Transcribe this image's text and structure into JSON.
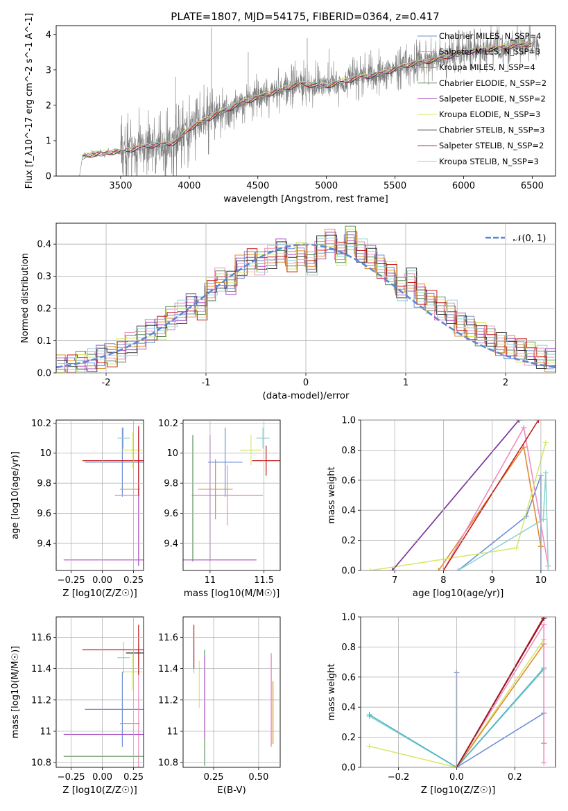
{
  "figure": {
    "title": "PLATE=1807, MJD=54175, FIBERID=0364, z=0.417"
  },
  "chart_data": [
    {
      "id": "spectrum",
      "type": "line",
      "title": "PLATE=1807, MJD=54175, FIBERID=0364, z=0.417",
      "xlabel": "wavelength [Angstrom, rest frame]",
      "ylabel": "Flux [f_λ10^-17 erg cm^-2 s^-1 A^-1]",
      "xlim": [
        3030,
        6670
      ],
      "ylim": [
        0,
        4.25
      ],
      "xticks": [
        3500,
        4000,
        4500,
        5000,
        5500,
        6000,
        6500
      ],
      "yticks": [
        0,
        1,
        2,
        3,
        4
      ],
      "legend_position": "top-right",
      "observed": {
        "x_start": 3200,
        "x_end": 6550,
        "color": "#808080",
        "description_points": [
          [
            3200,
            0
          ],
          [
            3220,
            0.55
          ],
          [
            3300,
            0.62
          ],
          [
            3500,
            0.7
          ],
          [
            3700,
            0.85
          ],
          [
            3900,
            0.95
          ],
          [
            4000,
            1.35
          ],
          [
            4200,
            1.75
          ],
          [
            4400,
            2.1
          ],
          [
            4600,
            2.35
          ],
          [
            4800,
            2.6
          ],
          [
            5000,
            2.55
          ],
          [
            5200,
            2.75
          ],
          [
            5400,
            2.9
          ],
          [
            5600,
            3.15
          ],
          [
            5800,
            3.3
          ],
          [
            6000,
            3.5
          ],
          [
            6200,
            3.6
          ],
          [
            6400,
            3.7
          ],
          [
            6550,
            3.75
          ]
        ]
      },
      "series": [
        {
          "name": "Chabrier MILES, N_SSP=4",
          "color": "#6b8fd6"
        },
        {
          "name": "Salpeter MILES, N_SSP=3",
          "color": "#f08bbf"
        },
        {
          "name": "Kroupa MILES, N_SSP=4",
          "color": "#e08a2a"
        },
        {
          "name": "Chabrier ELODIE, N_SSP=2",
          "color": "#5a8f5a"
        },
        {
          "name": "Salpeter ELODIE, N_SSP=2",
          "color": "#a64fc2"
        },
        {
          "name": "Kroupa ELODIE, N_SSP=3",
          "color": "#d8e86a"
        },
        {
          "name": "Chabrier STELIB, N_SSP=3",
          "color": "#333333"
        },
        {
          "name": "Salpeter STELIB, N_SSP=2",
          "color": "#c41a1a"
        },
        {
          "name": "Kroupa STELIB, N_SSP=3",
          "color": "#8fd4d4"
        }
      ]
    },
    {
      "id": "residuals",
      "type": "line",
      "xlabel": "(data-model)/error",
      "ylabel": "Normed distribution",
      "xlim": [
        -2.5,
        2.5
      ],
      "ylim": [
        0,
        0.465
      ],
      "xticks": [
        -2,
        -1,
        0,
        1,
        2
      ],
      "yticks": [
        0.0,
        0.1,
        0.2,
        0.3,
        0.4
      ],
      "grid": true,
      "legend": "𝒩(0, 1)",
      "legend_position": "top-right",
      "gaussian": {
        "mean": 0,
        "sigma": 1,
        "color": "#5b86d6"
      },
      "hist_bins": [
        -2.5,
        -2.4,
        -2.3,
        -2.2,
        -2.1,
        -2.0,
        -1.9,
        -1.8,
        -1.7,
        -1.6,
        -1.5,
        -1.4,
        -1.3,
        -1.2,
        -1.1,
        -1.0,
        -0.9,
        -0.8,
        -0.7,
        -0.6,
        -0.5,
        -0.4,
        -0.3,
        -0.2,
        -0.1,
        0.0,
        0.1,
        0.2,
        0.3,
        0.4,
        0.5,
        0.6,
        0.7,
        0.8,
        0.9,
        1.0,
        1.1,
        1.2,
        1.3,
        1.4,
        1.5,
        1.6,
        1.7,
        1.8,
        1.9,
        2.0,
        2.1,
        2.2,
        2.3,
        2.4
      ],
      "hist_values": [
        0.02,
        0.02,
        0.03,
        0.04,
        0.05,
        0.055,
        0.07,
        0.09,
        0.11,
        0.13,
        0.14,
        0.17,
        0.19,
        0.21,
        0.2,
        0.26,
        0.29,
        0.28,
        0.33,
        0.35,
        0.34,
        0.36,
        0.38,
        0.35,
        0.37,
        0.34,
        0.39,
        0.41,
        0.37,
        0.42,
        0.38,
        0.36,
        0.33,
        0.31,
        0.26,
        0.29,
        0.24,
        0.22,
        0.2,
        0.19,
        0.15,
        0.14,
        0.12,
        0.11,
        0.09,
        0.08,
        0.07,
        0.06,
        0.05,
        0.04
      ]
    },
    {
      "id": "age_vs_Z",
      "type": "scatter",
      "xlabel": "Z [log10(Z/Z☉)]",
      "ylabel": "age [log10(age/yr)]",
      "xlim": [
        -0.37,
        0.33
      ],
      "ylim": [
        9.22,
        10.22
      ],
      "xticks": [
        -0.25,
        0.0,
        0.25
      ],
      "xticklabels": [
        "−0.25",
        "0.00",
        "0.25"
      ],
      "yticks": [
        9.4,
        9.6,
        9.8,
        10.0,
        10.2
      ],
      "grid": true,
      "points": [
        {
          "x": 0.16,
          "y": 9.94,
          "xerr": 0.3,
          "yerr": 0.23,
          "color": "#6b8fd6"
        },
        {
          "x": 0.2,
          "y": 9.72,
          "xerr": 0.1,
          "yerr": 0.0,
          "color": "#f08bbf"
        },
        {
          "x": 0.22,
          "y": 9.76,
          "xerr": 0.08,
          "yerr": 0.0,
          "color": "#e08a2a"
        },
        {
          "x": 0.29,
          "y": 9.29,
          "xerr": 0.6,
          "yerr": 0.0,
          "color": "#a64fc2"
        },
        {
          "x": 0.29,
          "y": 9.7,
          "xerr": 0.0,
          "yerr": 0.45,
          "color": "#a64fc2"
        },
        {
          "x": 0.24,
          "y": 10.02,
          "xerr": 0.08,
          "yerr": 0.12,
          "color": "#d8e86a"
        },
        {
          "x": 0.17,
          "y": 10.1,
          "xerr": 0.05,
          "yerr": 0.07,
          "color": "#8fd4d4"
        },
        {
          "x": 0.29,
          "y": 9.95,
          "xerr": 0.45,
          "yerr": 0.23,
          "color": "#c41a1a"
        }
      ]
    },
    {
      "id": "age_vs_mass",
      "type": "scatter",
      "xlabel": "mass [log10(M/M☉)]",
      "xlim": [
        10.75,
        11.65
      ],
      "ylim": [
        9.22,
        10.22
      ],
      "xticks": [
        11.0,
        11.5
      ],
      "yticks": [
        9.4,
        9.6,
        9.8,
        10.0,
        10.2
      ],
      "grid": true,
      "points": [
        {
          "x": 11.14,
          "y": 9.94,
          "xerr": 0.16,
          "yerr": 0.23,
          "color": "#6b8fd6"
        },
        {
          "x": 11.16,
          "y": 9.72,
          "xerr": 0.33,
          "yerr": 0.2,
          "color": "#f08bbf"
        },
        {
          "x": 11.05,
          "y": 9.76,
          "xerr": 0.16,
          "yerr": 0.2,
          "color": "#e08a2a"
        },
        {
          "x": 10.84,
          "y": 9.7,
          "xerr": 0.0,
          "yerr": 0.42,
          "color": "#5a8f5a"
        },
        {
          "x": 10.98,
          "y": 9.29,
          "xerr": 0.45,
          "yerr": 0.0,
          "color": "#a64fc2"
        },
        {
          "x": 11.0,
          "y": 9.7,
          "xerr": 0.0,
          "yerr": 0.42,
          "color": "#a64fc2"
        },
        {
          "x": 11.38,
          "y": 10.02,
          "xerr": 0.1,
          "yerr": 0.1,
          "color": "#d8e86a"
        },
        {
          "x": 11.49,
          "y": 10.1,
          "xerr": 0.06,
          "yerr": 0.07,
          "color": "#8fd4d4"
        },
        {
          "x": 11.52,
          "y": 9.95,
          "xerr": 0.13,
          "yerr": 0.1,
          "color": "#c41a1a"
        }
      ]
    },
    {
      "id": "massweight_vs_age",
      "type": "line",
      "xlabel": "age [log10(age/yr)]",
      "ylabel": "mass weight",
      "xlim": [
        6.3,
        10.3
      ],
      "ylim": [
        0,
        1.0
      ],
      "xticks": [
        7,
        8,
        9,
        10
      ],
      "yticks": [
        0.0,
        0.2,
        0.4,
        0.6,
        0.8,
        1.0
      ],
      "grid": true,
      "series": [
        {
          "color": "#6b8fd6",
          "x": [
            8.3,
            9.7,
            10.0,
            10.0
          ],
          "y": [
            0.0,
            0.36,
            0.63,
            0.0
          ]
        },
        {
          "color": "#e08a2a",
          "x": [
            7.9,
            9.65,
            10.0
          ],
          "y": [
            0.0,
            0.82,
            0.16
          ]
        },
        {
          "color": "#f08bbf",
          "x": [
            8.0,
            9.65,
            10.15
          ],
          "y": [
            0.0,
            0.95,
            0.03
          ]
        },
        {
          "color": "#d8e86a",
          "x": [
            6.5,
            9.5,
            10.1
          ],
          "y": [
            0.0,
            0.15,
            0.85
          ]
        },
        {
          "color": "#8fd4d4",
          "x": [
            8.3,
            10.05,
            10.1,
            10.15
          ],
          "y": [
            0.0,
            0.34,
            0.65,
            0.0
          ]
        },
        {
          "color": "#a64fc2",
          "x": [
            6.95,
            9.55
          ],
          "y": [
            0.0,
            1.0
          ]
        },
        {
          "color": "#7a3a9a",
          "x": [
            6.95,
            9.55
          ],
          "y": [
            0.0,
            1.0
          ]
        },
        {
          "color": "#c41a1a",
          "x": [
            8.0,
            9.95
          ],
          "y": [
            0.0,
            1.0
          ]
        }
      ]
    },
    {
      "id": "mass_vs_Z",
      "type": "scatter",
      "xlabel": "Z [log10(Z/Z☉)]",
      "ylabel": "mass [log10(M/M☉)]",
      "xlim": [
        -0.37,
        0.33
      ],
      "ylim": [
        10.77,
        11.73
      ],
      "xticks": [
        -0.25,
        0.0,
        0.25
      ],
      "xticklabels": [
        "−0.25",
        "0.00",
        "0.25"
      ],
      "yticks": [
        10.8,
        11.0,
        11.2,
        11.4,
        11.6
      ],
      "grid": true,
      "points": [
        {
          "x": 0.16,
          "y": 11.14,
          "xerr": 0.3,
          "yerr": 0.24,
          "color": "#6b8fd6"
        },
        {
          "x": 0.29,
          "y": 11.1,
          "xerr": 0.0,
          "yerr": 0.45,
          "color": "#f08bbf"
        },
        {
          "x": 0.22,
          "y": 11.05,
          "xerr": 0.08,
          "yerr": 0.0,
          "color": "#e08a2a"
        },
        {
          "x": 0.29,
          "y": 10.84,
          "xerr": 0.6,
          "yerr": 0.0,
          "color": "#5a8f5a"
        },
        {
          "x": 0.29,
          "y": 10.98,
          "xerr": 0.6,
          "yerr": 0.0,
          "color": "#a64fc2"
        },
        {
          "x": 0.24,
          "y": 11.38,
          "xerr": 0.08,
          "yerr": 0.12,
          "color": "#d8e86a"
        },
        {
          "x": 0.17,
          "y": 11.47,
          "xerr": 0.05,
          "yerr": 0.1,
          "color": "#8fd4d4"
        },
        {
          "x": 0.29,
          "y": 11.52,
          "xerr": 0.45,
          "yerr": 0.16,
          "color": "#c41a1a"
        },
        {
          "x": 0.26,
          "y": 11.5,
          "xerr": 0.07,
          "yerr": 0.0,
          "color": "#333333"
        }
      ]
    },
    {
      "id": "mass_vs_EBV",
      "type": "scatter",
      "xlabel": "E(B-V)",
      "xlim": [
        0.08,
        0.62
      ],
      "ylim": [
        10.77,
        11.73
      ],
      "xticks": [
        0.25,
        0.5
      ],
      "xticklabels": [
        "0.25",
        "0.50"
      ],
      "yticks": [
        10.8,
        11.0,
        11.2,
        11.4,
        11.6
      ],
      "grid": true,
      "points": [
        {
          "x": 0.57,
          "y": 11.2,
          "xerr": 0.0,
          "yerr": 0.29,
          "color": "#6b8fd6"
        },
        {
          "x": 0.57,
          "y": 11.2,
          "xerr": 0.0,
          "yerr": 0.3,
          "color": "#f08bbf"
        },
        {
          "x": 0.58,
          "y": 11.12,
          "xerr": 0.0,
          "yerr": 0.2,
          "color": "#e08a2a"
        },
        {
          "x": 0.2,
          "y": 11.15,
          "xerr": 0.0,
          "yerr": 0.37,
          "color": "#5a8f5a"
        },
        {
          "x": 0.2,
          "y": 11.22,
          "xerr": 0.0,
          "yerr": 0.26,
          "color": "#a64fc2"
        },
        {
          "x": 0.17,
          "y": 11.3,
          "xerr": 0.0,
          "yerr": 0.15,
          "color": "#d8e86a"
        },
        {
          "x": 0.14,
          "y": 11.47,
          "xerr": 0.0,
          "yerr": 0.1,
          "color": "#8fd4d4"
        },
        {
          "x": 0.14,
          "y": 11.54,
          "xerr": 0.0,
          "yerr": 0.14,
          "color": "#c41a1a"
        }
      ]
    },
    {
      "id": "massweight_vs_Z",
      "type": "line",
      "xlabel": "Z [log10(Z/Z☉)]",
      "ylabel": "mass weight",
      "xlim": [
        -0.33,
        0.34
      ],
      "ylim": [
        0,
        1.0
      ],
      "xticks": [
        -0.2,
        0.0,
        0.2
      ],
      "xticklabels": [
        "−0.2",
        "0.0",
        "0.2"
      ],
      "yticks": [
        0.0,
        0.2,
        0.4,
        0.6,
        0.8,
        1.0
      ],
      "grid": true,
      "series": [
        {
          "color": "#6b8fd6",
          "x": [
            0.0,
            0.0,
            0.3
          ],
          "y": [
            0.63,
            0.0,
            0.36
          ]
        },
        {
          "color": "#8fd4d4",
          "x": [
            -0.3,
            0.0,
            0.3
          ],
          "y": [
            0.34,
            0.0,
            0.65
          ]
        },
        {
          "color": "#4ab4c4",
          "x": [
            -0.3,
            0.0,
            0.3
          ],
          "y": [
            0.35,
            0.0,
            0.66
          ]
        },
        {
          "color": "#d8e86a",
          "x": [
            -0.3,
            0.0,
            0.3
          ],
          "y": [
            0.14,
            0.0,
            0.85
          ]
        },
        {
          "color": "#e08a2a",
          "x": [
            0.0,
            0.3,
            0.3
          ],
          "y": [
            0.0,
            0.82,
            0.16
          ]
        },
        {
          "color": "#f08bbf",
          "x": [
            0.0,
            0.3,
            0.3
          ],
          "y": [
            0.0,
            0.95,
            0.03
          ]
        },
        {
          "color": "#c41a1a",
          "x": [
            0.0,
            0.3
          ],
          "y": [
            0.0,
            1.0
          ]
        },
        {
          "color": "#8a1a2a",
          "x": [
            0.0,
            0.3
          ],
          "y": [
            0.0,
            0.99
          ]
        }
      ]
    }
  ]
}
